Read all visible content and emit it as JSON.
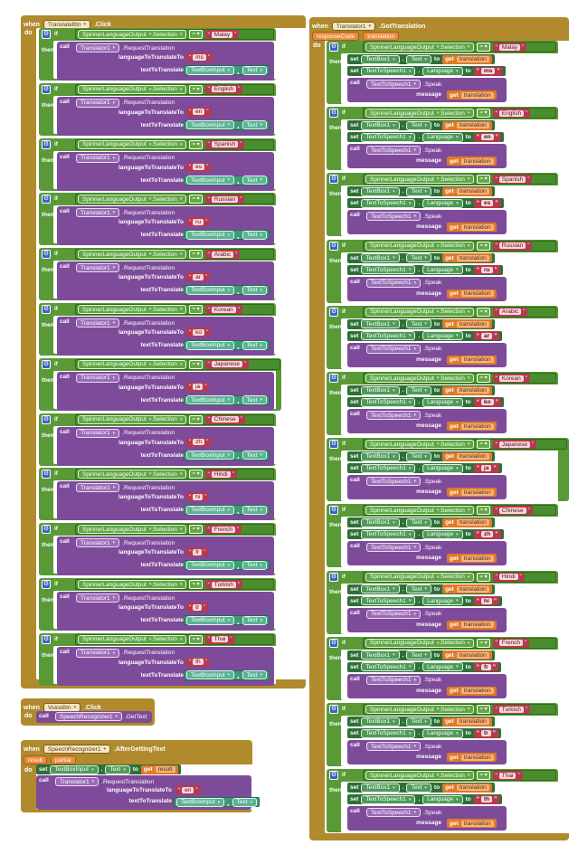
{
  "common": {
    "when": "when",
    "do": "do",
    "if": "if",
    "then": "then",
    "call": "call",
    "set": "set",
    "to": "to",
    "get": "get",
    "eq": "=",
    "spinner": "SpinnerLanguageOutput",
    "selection": "Selection",
    "translator": "Translator1",
    "request": ".RequestTranslation",
    "lang_arg": "languageToTranslateTo",
    "text_arg": "textToTranslate",
    "textbox_input": "TextBoxInput",
    "text_prop": "Text",
    "textbox1": "TextBox1",
    "tts": "TextToSpeech1",
    "language_prop": "Language",
    "speak": ".Speak",
    "message": "message",
    "translation": "translation",
    "result": "result",
    "partial": "partial"
  },
  "translate_event": {
    "component": "TranslateBtn",
    "event": ".Click",
    "cases": [
      {
        "lang": "Malay",
        "code": "ms"
      },
      {
        "lang": "English",
        "code": "en"
      },
      {
        "lang": "Spanish",
        "code": "es"
      },
      {
        "lang": "Russian",
        "code": "ru"
      },
      {
        "lang": "Arabic",
        "code": "ar"
      },
      {
        "lang": "Korean",
        "code": "ko"
      },
      {
        "lang": "Japanese",
        "code": "ja"
      },
      {
        "lang": "Chinese",
        "code": "zh"
      },
      {
        "lang": "Hindi",
        "code": "hi"
      },
      {
        "lang": "French",
        "code": "fr"
      },
      {
        "lang": "Turkish",
        "code": "tr"
      },
      {
        "lang": "Thai",
        "code": "th"
      }
    ]
  },
  "voice_event": {
    "component": "VoiceBtn",
    "event": ".Click",
    "target": "SpeechRecognizer1",
    "method": ".GetText"
  },
  "speech_event": {
    "component": "SpeechRecognizer1",
    "event": ".AfterGettingText",
    "code": "en"
  },
  "got_event": {
    "component": "Translator1",
    "event": ".GotTranslation",
    "param1": "responseCode",
    "param2": "translation"
  }
}
